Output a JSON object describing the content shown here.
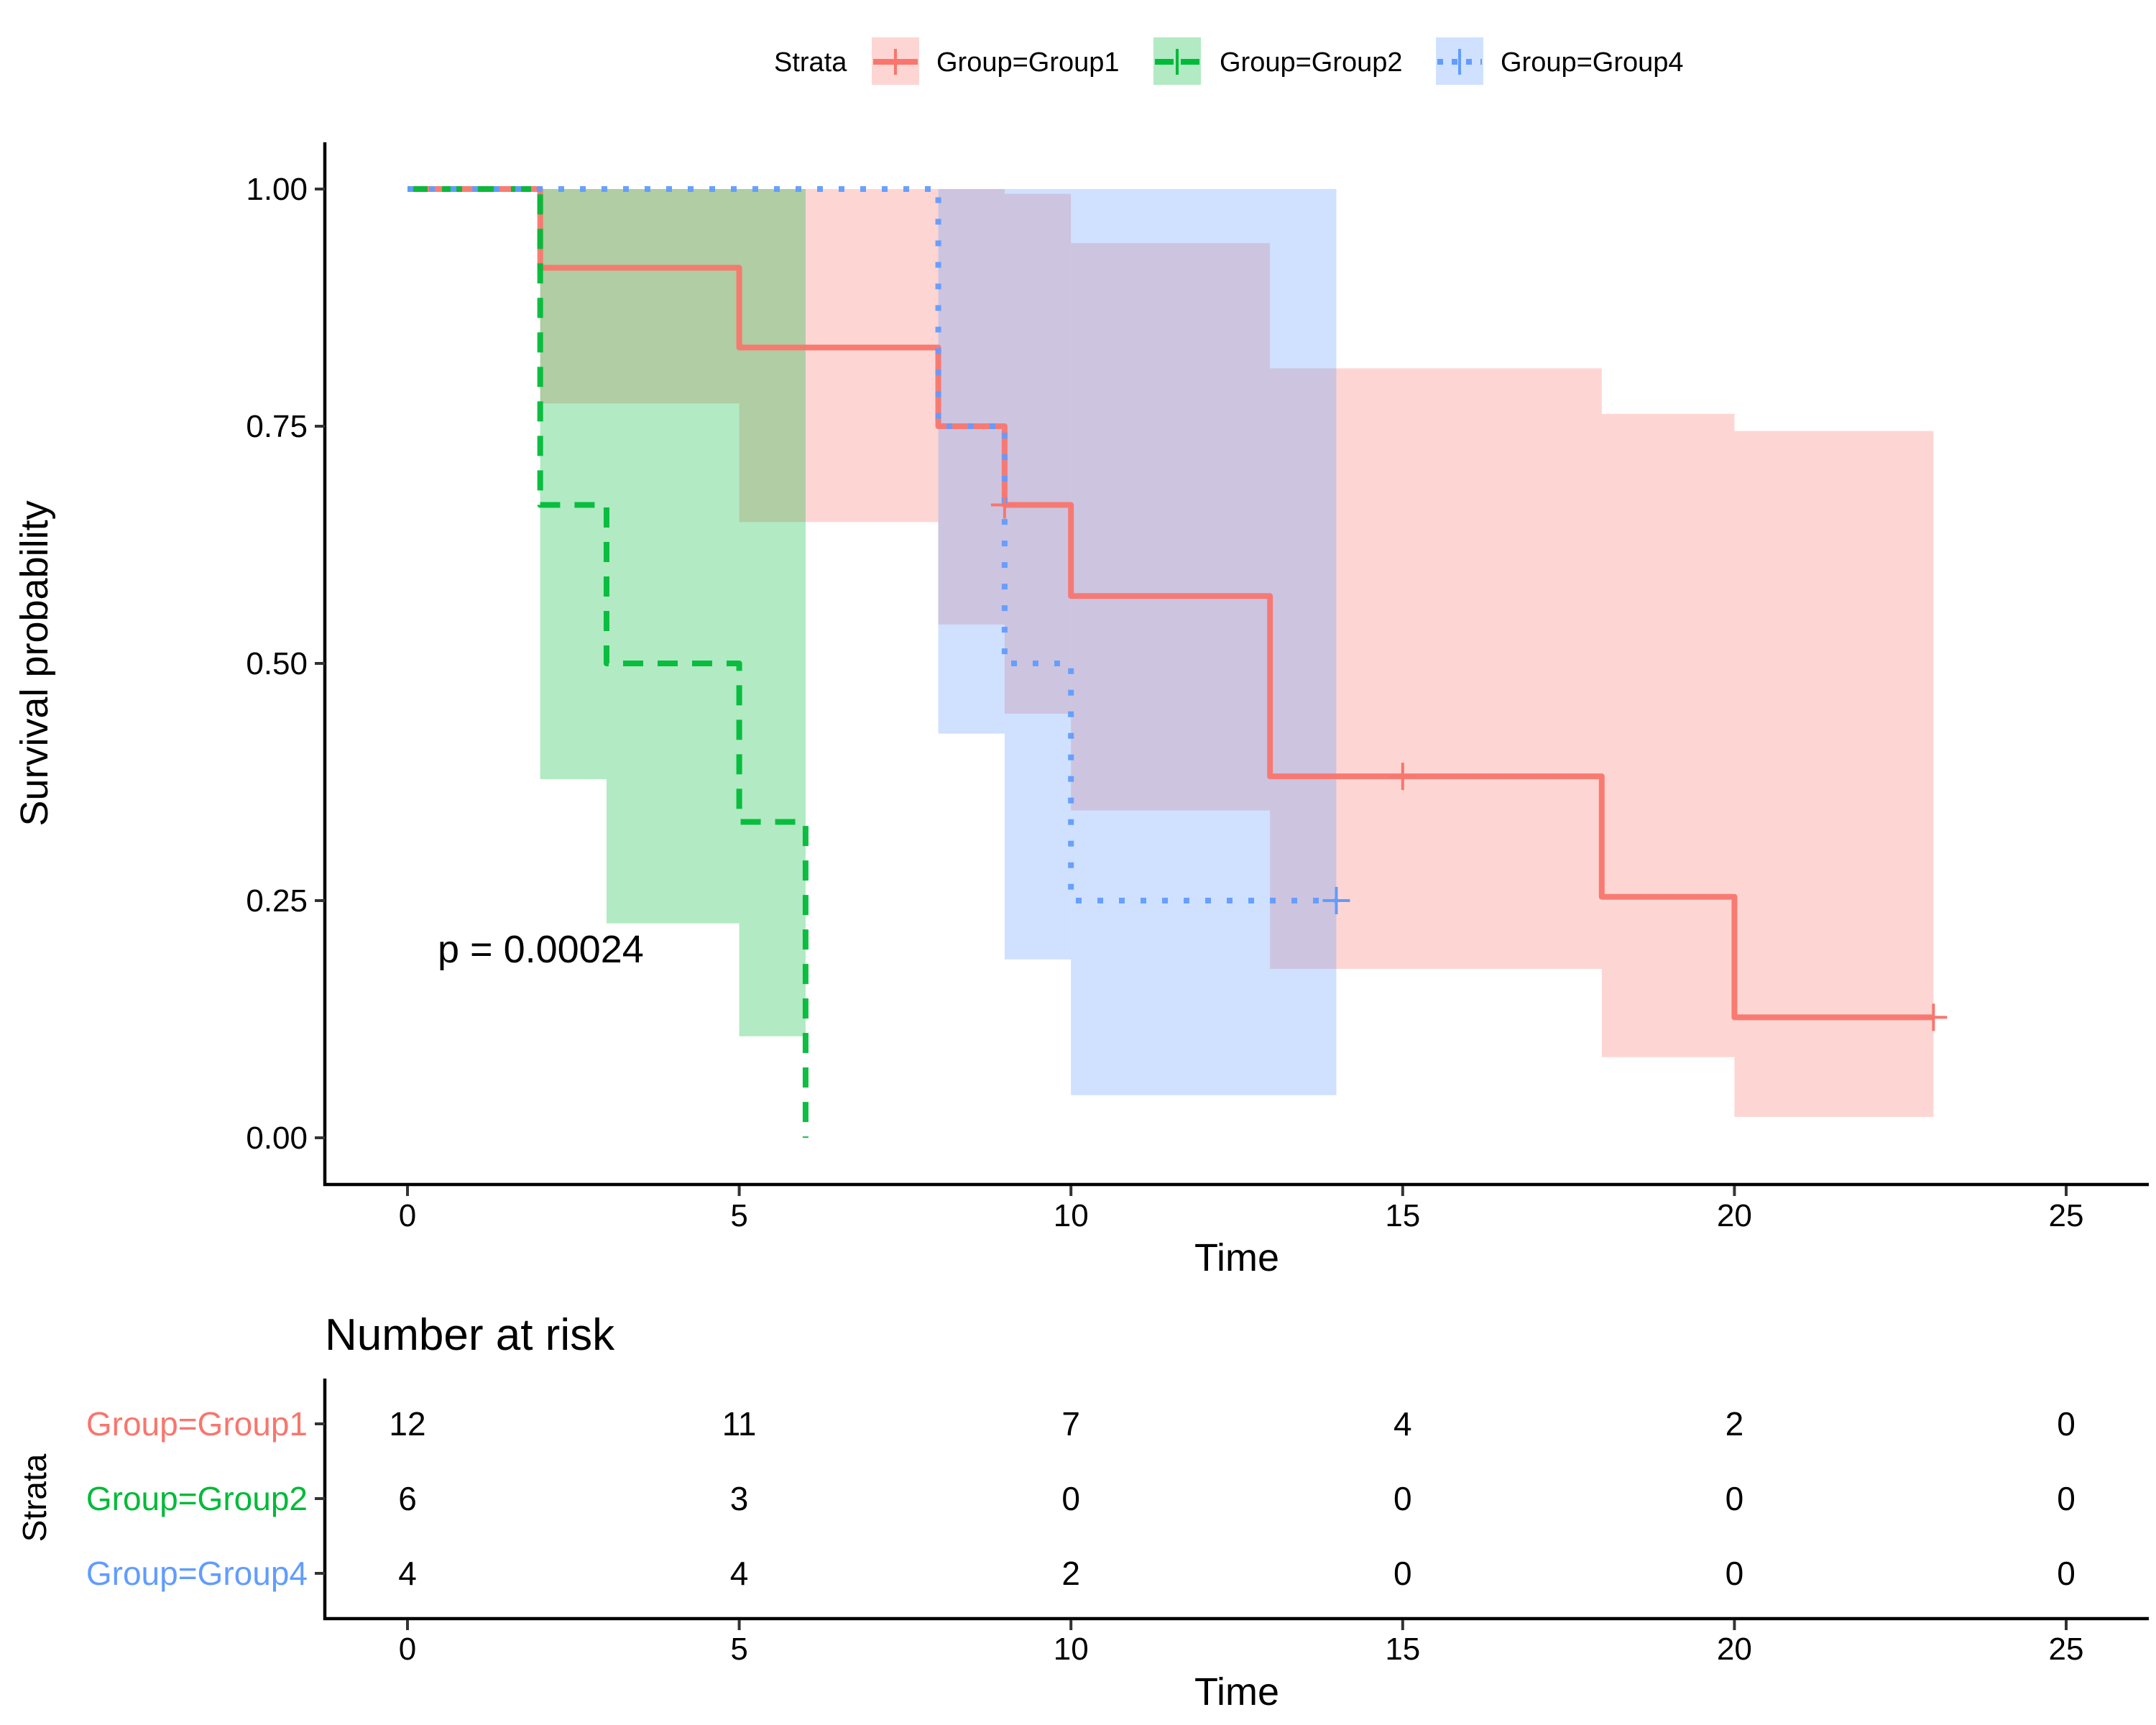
{
  "chart_data": [
    {
      "type": "line",
      "subtype": "kaplan-meier step survival curve with confidence bands",
      "title": "",
      "xlabel": "Time",
      "ylabel": "Survival probability",
      "xlim": [
        0,
        25
      ],
      "ylim": [
        0,
        1
      ],
      "x_ticks": [
        "0",
        "5",
        "10",
        "15",
        "20",
        "25"
      ],
      "y_ticks": [
        "0.00",
        "0.25",
        "0.50",
        "0.75",
        "1.00"
      ],
      "grid": false,
      "legend": {
        "title": "Strata",
        "placement": "top",
        "entries": [
          "Group=Group1",
          "Group=Group2",
          "Group=Group4"
        ]
      },
      "annotation": "p = 0.00024",
      "series": [
        {
          "name": "Group=Group1",
          "color": "#F8766D",
          "linetype": "solid",
          "steps": [
            {
              "t": 0,
              "s": 1.0,
              "lower": 1.0,
              "upper": 1.0
            },
            {
              "t": 2,
              "s": 0.917,
              "lower": 0.774,
              "upper": 1.0
            },
            {
              "t": 5,
              "s": 0.833,
              "lower": 0.649,
              "upper": 1.0
            },
            {
              "t": 8,
              "s": 0.75,
              "lower": 0.541,
              "upper": 1.0
            },
            {
              "t": 9,
              "s": 0.667,
              "lower": 0.447,
              "upper": 0.995
            },
            {
              "t": 10,
              "s": 0.571,
              "lower": 0.345,
              "upper": 0.943
            },
            {
              "t": 13,
              "s": 0.381,
              "lower": 0.178,
              "upper": 0.811
            },
            {
              "t": 18,
              "s": 0.254,
              "lower": 0.085,
              "upper": 0.763
            },
            {
              "t": 20,
              "s": 0.127,
              "lower": 0.022,
              "upper": 0.745
            }
          ],
          "end_time": 23,
          "censor_times": [
            9,
            15,
            23
          ]
        },
        {
          "name": "Group=Group2",
          "color": "#00BA38",
          "linetype": "dashed",
          "steps": [
            {
              "t": 0,
              "s": 1.0,
              "lower": 1.0,
              "upper": 1.0
            },
            {
              "t": 2,
              "s": 0.667,
              "lower": 0.378,
              "upper": 1.0
            },
            {
              "t": 3,
              "s": 0.5,
              "lower": 0.226,
              "upper": 1.0
            },
            {
              "t": 5,
              "s": 0.333,
              "lower": 0.107,
              "upper": 1.0
            },
            {
              "t": 6,
              "s": 0.0,
              "lower": null,
              "upper": null
            }
          ],
          "end_time": 6,
          "censor_times": []
        },
        {
          "name": "Group=Group4",
          "color": "#619CFF",
          "linetype": "dotted",
          "steps": [
            {
              "t": 0,
              "s": 1.0,
              "lower": 1.0,
              "upper": 1.0
            },
            {
              "t": 8,
              "s": 0.75,
              "lower": 0.426,
              "upper": 1.0
            },
            {
              "t": 9,
              "s": 0.5,
              "lower": 0.188,
              "upper": 1.0
            },
            {
              "t": 10,
              "s": 0.25,
              "lower": 0.045,
              "upper": 1.0
            }
          ],
          "end_time": 14,
          "censor_times": [
            14
          ]
        }
      ]
    },
    {
      "type": "table",
      "title": "Number at risk",
      "xlabel": "Time",
      "ylabel": "Strata",
      "x_ticks": [
        "0",
        "5",
        "10",
        "15",
        "20",
        "25"
      ],
      "times": [
        0,
        5,
        10,
        15,
        20,
        25
      ],
      "rows": [
        {
          "label": "Group=Group1",
          "color": "#F8766D",
          "values": [
            12,
            11,
            7,
            4,
            2,
            0
          ]
        },
        {
          "label": "Group=Group2",
          "color": "#00BA38",
          "values": [
            6,
            3,
            0,
            0,
            0,
            0
          ]
        },
        {
          "label": "Group=Group4",
          "color": "#619CFF",
          "values": [
            4,
            4,
            2,
            0,
            0,
            0
          ]
        }
      ]
    }
  ]
}
